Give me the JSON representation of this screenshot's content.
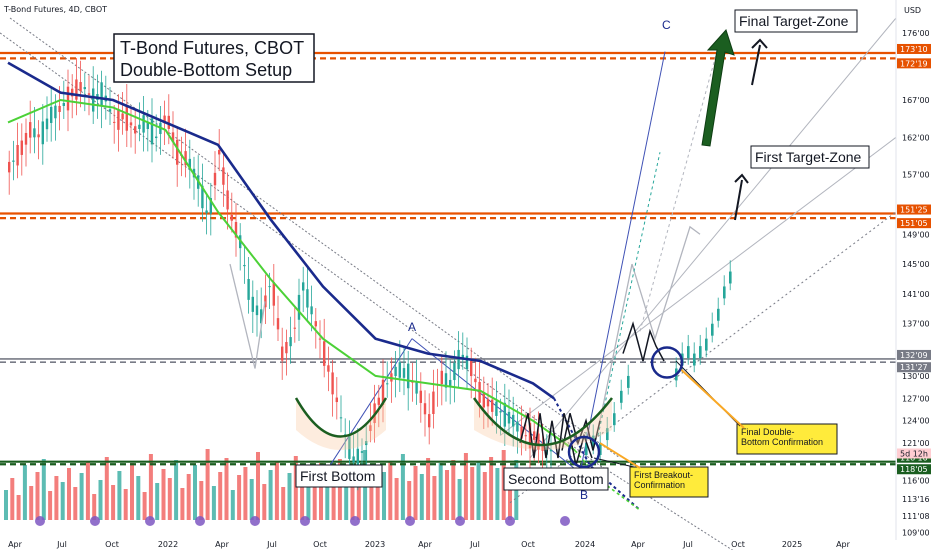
{
  "header": {
    "title": "T-Bond Futures, 4D, CBOT",
    "currency": "USD"
  },
  "chart_data": {
    "type": "candlestick",
    "title": "T-Bond Futures, CBOT",
    "subtitle": "Double-Bottom Setup",
    "ylim": [
      108,
      178
    ],
    "y_ticks": [
      "176'00",
      "173'10",
      "172'19",
      "167'00",
      "162'00",
      "157'00",
      "151'25",
      "151'05",
      "149'00",
      "145'00",
      "141'00",
      "137'00",
      "132'09",
      "131'27",
      "130'00",
      "127'00",
      "124'00",
      "121'00",
      "118'16",
      "118'05",
      "116'00",
      "113'16",
      "111'08",
      "109'00"
    ],
    "x_ticks": [
      "Apr",
      "Jul",
      "Oct",
      "2022",
      "Apr",
      "Jul",
      "Oct",
      "2023",
      "Apr",
      "Jul",
      "Oct",
      "2024",
      "Apr",
      "Jul",
      "Oct",
      "2025",
      "Apr"
    ],
    "price_levels": [
      {
        "label": "173'10",
        "value": 173.31,
        "color": "#e65100"
      },
      {
        "label": "172'19",
        "value": 172.59,
        "color": "#e65100"
      },
      {
        "label": "151'25",
        "value": 151.78,
        "color": "#e65100"
      },
      {
        "label": "151'05",
        "value": 151.16,
        "color": "#e65100"
      },
      {
        "label": "132'09",
        "value": 132.28,
        "color": "#787b86"
      },
      {
        "label": "131'27",
        "value": 131.84,
        "color": "#787b86"
      },
      {
        "label": "118'16",
        "value": 118.5,
        "color": "#1b5e20"
      },
      {
        "label": "118'05",
        "value": 118.16,
        "color": "#1b5e20"
      }
    ],
    "current_badge": "5d 12h",
    "annotations": {
      "first_bottom": "First Bottom",
      "second_bottom": "Second Bottom",
      "first_breakout": "First Breakout-\nConfirmation",
      "final_confirmation": "Final Double-\nBottom Confirmation",
      "first_target": "First Target-Zone",
      "final_target": "Final Target-Zone",
      "point_a": "A",
      "point_b": "B",
      "point_c": "C"
    },
    "price_path": [
      [
        0,
        158
      ],
      [
        10,
        160
      ],
      [
        20,
        163
      ],
      [
        30,
        162
      ],
      [
        40,
        165
      ],
      [
        50,
        166
      ],
      [
        60,
        168
      ],
      [
        70,
        169
      ],
      [
        80,
        167
      ],
      [
        90,
        168
      ],
      [
        100,
        164
      ],
      [
        110,
        165
      ],
      [
        120,
        163
      ],
      [
        130,
        164
      ],
      [
        140,
        162
      ],
      [
        150,
        165
      ],
      [
        160,
        160
      ],
      [
        170,
        159
      ],
      [
        180,
        156
      ],
      [
        190,
        151
      ],
      [
        200,
        160
      ],
      [
        210,
        152
      ],
      [
        220,
        148
      ],
      [
        230,
        140
      ],
      [
        240,
        138
      ],
      [
        250,
        143
      ],
      [
        260,
        133
      ],
      [
        270,
        135
      ],
      [
        280,
        142
      ],
      [
        290,
        138
      ],
      [
        300,
        133
      ],
      [
        310,
        128
      ],
      [
        320,
        122
      ],
      [
        330,
        118
      ],
      [
        340,
        121
      ],
      [
        350,
        126
      ],
      [
        360,
        129
      ],
      [
        370,
        131
      ],
      [
        380,
        130
      ],
      [
        390,
        128
      ],
      [
        400,
        124
      ],
      [
        410,
        130
      ],
      [
        420,
        129
      ],
      [
        430,
        133
      ],
      [
        440,
        131
      ],
      [
        450,
        127
      ],
      [
        460,
        126
      ],
      [
        470,
        125
      ],
      [
        480,
        124
      ],
      [
        490,
        122
      ],
      [
        500,
        122
      ],
      [
        510,
        120
      ]
    ],
    "ema_fast": [
      [
        0,
        164
      ],
      [
        50,
        167
      ],
      [
        100,
        166
      ],
      [
        150,
        163
      ],
      [
        200,
        152
      ],
      [
        250,
        143
      ],
      [
        300,
        135
      ],
      [
        350,
        130
      ],
      [
        400,
        129
      ],
      [
        450,
        128
      ],
      [
        500,
        124
      ],
      [
        540,
        120
      ]
    ],
    "ema_slow": [
      [
        0,
        172
      ],
      [
        50,
        168
      ],
      [
        100,
        167
      ],
      [
        150,
        164
      ],
      [
        200,
        161
      ],
      [
        250,
        151
      ],
      [
        300,
        142
      ],
      [
        350,
        135
      ],
      [
        400,
        133
      ],
      [
        450,
        132
      ],
      [
        500,
        129
      ],
      [
        520,
        127
      ]
    ],
    "volume": [
      30,
      42,
      25,
      55,
      34,
      48,
      61,
      29,
      44,
      38,
      52,
      33,
      47,
      58,
      26,
      40,
      63,
      35,
      49,
      31,
      57,
      44,
      28,
      66,
      37,
      51,
      42,
      60,
      32,
      46,
      55,
      39,
      71,
      34,
      48,
      62,
      30,
      45,
      53,
      41,
      68,
      36,
      50,
      59,
      33,
      47,
      64,
      38,
      52,
      43,
      57,
      35,
      49,
      61,
      40,
      55,
      45,
      70,
      37,
      52,
      48,
      58,
      42,
      66,
      39,
      54,
      46,
      62,
      44,
      57,
      50,
      60,
      41,
      67,
      53,
      58,
      48,
      63,
      52,
      70,
      46,
      60
    ]
  }
}
